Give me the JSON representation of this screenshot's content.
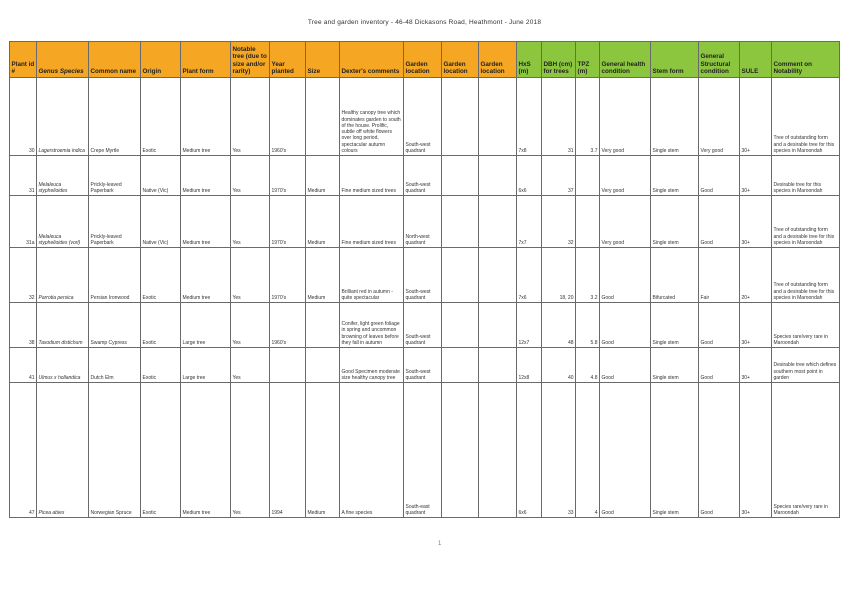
{
  "title": "Tree and garden inventory - 46-48 Dickasons Road, Heathmont - June 2018",
  "headers": {
    "plant_id": "Plant id #",
    "genus_species": "Genus Species",
    "common_name": "Common name",
    "origin": "Origin",
    "plant_form": "Plant form",
    "notable": "Notable tree (due to size and/or rarity)",
    "year_planted": "Year planted",
    "size": "Size",
    "dexters_comments": "Dexter's comments",
    "garden_location_1": "Garden location",
    "garden_location_2": "Garden location",
    "garden_location_3": "Garden location",
    "hxs": "HxS (m)",
    "dbh": "DBH (cm) for trees",
    "tpz": "TPZ (m)",
    "general_health": "General health condition",
    "stem_form": "Stem form",
    "structural": "General Structural condition",
    "sule": "SULE",
    "comment_notability": "Comment on Notability"
  },
  "header_colors": {
    "orange": "#f5a623",
    "green": "#8cc63f"
  },
  "rows": [
    {
      "id": "30",
      "genus": "Lagerstroemia indica",
      "common": "Crepe Myrtle",
      "origin": "Exotic",
      "form": "Medium tree",
      "notable": "Yes",
      "year": "1960's",
      "size": "",
      "dexter": "Healthy canopy tree which dominates garden to south of the house. Prolific, subtle off white flowers over long period, spectacular autumn colours",
      "loc1": "South-west quadrant",
      "loc2": "",
      "loc3": "",
      "hxs": "7x8",
      "dbh": "31",
      "tpz": "3.7",
      "health": "Very good",
      "stem": "Single stem",
      "struct": "Very good",
      "sule": "30+",
      "notability": "Tree of outstanding form and a desirable tree for this species in Maroondah"
    },
    {
      "id": "31",
      "genus": "Melaleuca styphelioides",
      "common": "Prickly-leaved Paperbark",
      "origin": "Native (Vic)",
      "form": "Medium tree",
      "notable": "Yes",
      "year": "1970's",
      "size": "Medium",
      "dexter": "Fine medium sized trees",
      "loc1": "South-west quadrant",
      "loc2": "",
      "loc3": "",
      "hxs": "6x6",
      "dbh": "37",
      "tpz": "",
      "health": "Very good",
      "stem": "Single stem",
      "struct": "Good",
      "sule": "30+",
      "notability": "Desirable tree for this species in Maroondah"
    },
    {
      "id": "31a",
      "genus": "Melaleuca styphelioides (vorl)",
      "common": "Prickly-leaved Paperbark",
      "origin": "Native (Vic)",
      "form": "Medium tree",
      "notable": "Yes",
      "year": "1970's",
      "size": "Medium",
      "dexter": "Fine medium sized trees",
      "loc1": "North-west quadrant",
      "loc2": "",
      "loc3": "",
      "hxs": "7x7",
      "dbh": "32",
      "tpz": "",
      "health": "Very good",
      "stem": "Single stem",
      "struct": "Good",
      "sule": "30+",
      "notability": "Tree of outstanding form and a desirable tree for this species in Maroondah"
    },
    {
      "id": "32",
      "genus": "Parrotia persica",
      "common": "Persian Ironwood",
      "origin": "Exotic",
      "form": "Medium tree",
      "notable": "Yes",
      "year": "1970's",
      "size": "Medium",
      "dexter": "Brilliant red in autumn - quite spectacular",
      "loc1": "South-west quadrant",
      "loc2": "",
      "loc3": "",
      "hxs": "7x6",
      "dbh": "18, 20",
      "tpz": "3.2",
      "health": "Good",
      "stem": "Bifurcated",
      "struct": "Fair",
      "sule": "20+",
      "notability": "Tree of outstanding form and a desirable tree for this species in Maroondah"
    },
    {
      "id": "38",
      "genus": "Taxodium distichum",
      "common": "Swamp Cypress",
      "origin": "Exotic",
      "form": "Large tree",
      "notable": "Yes",
      "year": "1960's",
      "size": "",
      "dexter": "Conifer, light green foliage in spring and uncommon browning of leaves before they fall in autumn",
      "loc1": "South-west quadrant",
      "loc2": "",
      "loc3": "",
      "hxs": "12x7",
      "dbh": "48",
      "tpz": "5.8",
      "health": "Good",
      "stem": "Single stem",
      "struct": "Good",
      "sule": "30+",
      "notability": "Species rare/very rare in Maroondah"
    },
    {
      "id": "41",
      "genus": "Ulmus x hollandica",
      "common": "Dutch Elm",
      "origin": "Exotic",
      "form": "Large tree",
      "notable": "Yes",
      "year": "",
      "size": "",
      "dexter": "Good Specimen moderate size healthy canopy tree",
      "loc1": "South-west quadrant",
      "loc2": "",
      "loc3": "",
      "hxs": "12x8",
      "dbh": "40",
      "tpz": "4.8",
      "health": "Good",
      "stem": "Single stem",
      "struct": "Good",
      "sule": "30+",
      "notability": "Desirable tree which defines southern most point in garden"
    },
    {
      "id": "47",
      "genus": "Picea abies",
      "common": "Norwegian Spruce",
      "origin": "Exotic",
      "form": "Medium tree",
      "notable": "Yes",
      "year": "1994",
      "size": "Medium",
      "dexter": "A fine species",
      "loc1": "South-east quadrant",
      "loc2": "",
      "loc3": "",
      "hxs": "6x6",
      "dbh": "33",
      "tpz": "4",
      "health": "Good",
      "stem": "Single stem",
      "struct": "Good",
      "sule": "30+",
      "notability": "Species rare/very rare in Maroondah"
    }
  ],
  "footer_mark": "1"
}
